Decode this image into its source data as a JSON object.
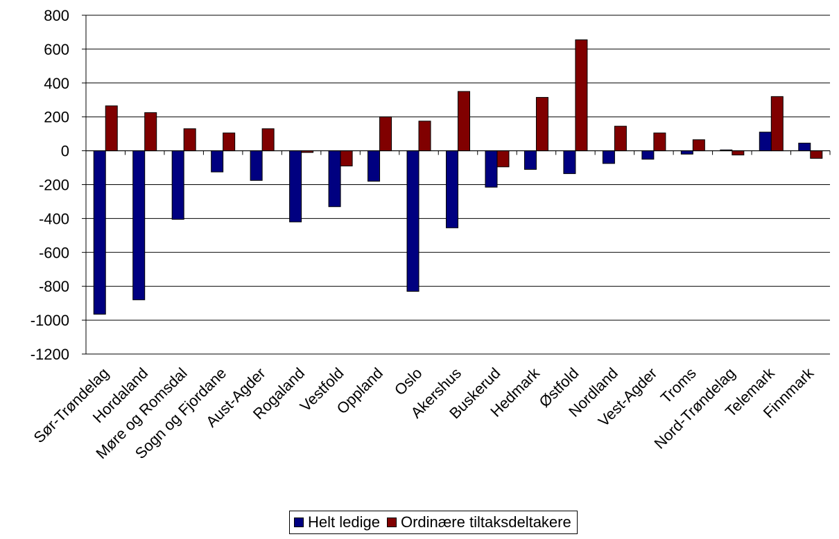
{
  "chart_data": {
    "type": "bar",
    "categories": [
      "Sør-Trøndelag",
      "Hordaland",
      "Møre og Romsdal",
      "Sogn og Fjordane",
      "Aust-Agder",
      "Rogaland",
      "Vestfold",
      "Oppland",
      "Oslo",
      "Akershus",
      "Buskerud",
      "Hedmark",
      "Østfold",
      "Nordland",
      "Vest-Agder",
      "Troms",
      "Nord-Trøndelag",
      "Telemark",
      "Finnmark"
    ],
    "series": [
      {
        "name": "Helt ledige",
        "color": "#000080",
        "values": [
          -965,
          -880,
          -405,
          -125,
          -175,
          -420,
          -330,
          -180,
          -830,
          -455,
          -215,
          -110,
          -135,
          -75,
          -50,
          -20,
          5,
          110,
          45
        ]
      },
      {
        "name": "Ordinære tiltaksdeltakere",
        "color": "#800000",
        "values": [
          265,
          225,
          130,
          105,
          130,
          -10,
          -90,
          200,
          175,
          350,
          -95,
          315,
          655,
          145,
          105,
          65,
          -25,
          320,
          -45
        ]
      }
    ],
    "ylim": [
      -1200,
      800
    ],
    "yticks": [
      800,
      600,
      400,
      200,
      0,
      -200,
      -400,
      -600,
      -800,
      -1000,
      -1200
    ],
    "grid": true,
    "legend_position": "bottom",
    "title": "",
    "xlabel": "",
    "ylabel": ""
  }
}
